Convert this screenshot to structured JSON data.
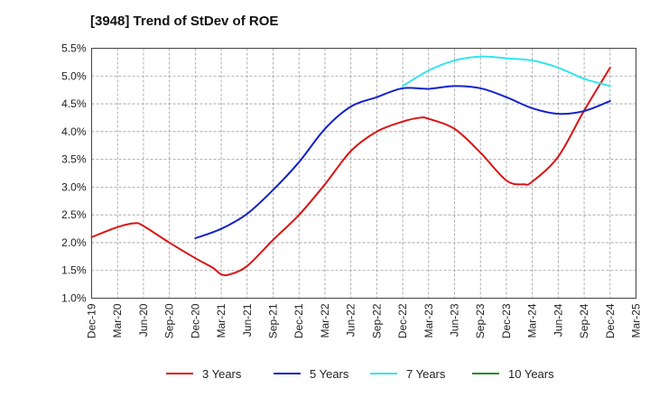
{
  "chart_data": {
    "type": "line",
    "title": "[3948]  Trend of StDev of ROE",
    "xlabel": "",
    "ylabel": "",
    "x_ticks": [
      "Dec-19",
      "Mar-20",
      "Jun-20",
      "Sep-20",
      "Dec-20",
      "Mar-21",
      "Jun-21",
      "Sep-21",
      "Dec-21",
      "Mar-22",
      "Jun-22",
      "Sep-22",
      "Dec-22",
      "Mar-23",
      "Jun-23",
      "Sep-23",
      "Dec-23",
      "Mar-24",
      "Jun-24",
      "Sep-24",
      "Dec-24",
      "Mar-25"
    ],
    "y_ticks": [
      "1.0%",
      "1.5%",
      "2.0%",
      "2.5%",
      "3.0%",
      "3.5%",
      "4.0%",
      "4.5%",
      "5.0%",
      "5.5%"
    ],
    "ylim": [
      1.0,
      5.5
    ],
    "grid": true,
    "grid_style": "dashed",
    "legend_position": "bottom",
    "series": [
      {
        "name": "3 Years",
        "color": "#dd1111",
        "points": [
          [
            "Dec-19",
            2.1
          ],
          [
            "Mar-20",
            2.28
          ],
          [
            "May-20",
            2.35
          ],
          [
            "Jun-20",
            2.3
          ],
          [
            "Sep-20",
            2.0
          ],
          [
            "Dec-20",
            1.72
          ],
          [
            "Feb-21",
            1.55
          ],
          [
            "Mar-21",
            1.43
          ],
          [
            "Apr-21",
            1.43
          ],
          [
            "Jun-21",
            1.58
          ],
          [
            "Sep-21",
            2.05
          ],
          [
            "Dec-21",
            2.5
          ],
          [
            "Mar-22",
            3.05
          ],
          [
            "Jun-22",
            3.65
          ],
          [
            "Sep-22",
            4.0
          ],
          [
            "Dec-22",
            4.18
          ],
          [
            "Feb-23",
            4.25
          ],
          [
            "Mar-23",
            4.23
          ],
          [
            "Jun-23",
            4.05
          ],
          [
            "Sep-23",
            3.62
          ],
          [
            "Dec-23",
            3.12
          ],
          [
            "Feb-24",
            3.05
          ],
          [
            "Mar-24",
            3.1
          ],
          [
            "Jun-24",
            3.55
          ],
          [
            "Sep-24",
            4.38
          ],
          [
            "Dec-24",
            5.15
          ]
        ]
      },
      {
        "name": "5 Years",
        "color": "#1122cc",
        "points": [
          [
            "Dec-20",
            2.08
          ],
          [
            "Mar-21",
            2.25
          ],
          [
            "Jun-21",
            2.52
          ],
          [
            "Sep-21",
            2.95
          ],
          [
            "Dec-21",
            3.45
          ],
          [
            "Mar-22",
            4.05
          ],
          [
            "Jun-22",
            4.45
          ],
          [
            "Sep-22",
            4.62
          ],
          [
            "Dec-22",
            4.78
          ],
          [
            "Mar-23",
            4.77
          ],
          [
            "Jun-23",
            4.82
          ],
          [
            "Sep-23",
            4.78
          ],
          [
            "Dec-23",
            4.62
          ],
          [
            "Mar-24",
            4.42
          ],
          [
            "Jun-24",
            4.32
          ],
          [
            "Sep-24",
            4.37
          ],
          [
            "Dec-24",
            4.55
          ]
        ]
      },
      {
        "name": "7 Years",
        "color": "#33e5ee",
        "points": [
          [
            "Dec-22",
            4.82
          ],
          [
            "Mar-23",
            5.1
          ],
          [
            "Jun-23",
            5.28
          ],
          [
            "Sep-23",
            5.35
          ],
          [
            "Dec-23",
            5.32
          ],
          [
            "Mar-24",
            5.28
          ],
          [
            "Jun-24",
            5.15
          ],
          [
            "Sep-24",
            4.95
          ],
          [
            "Dec-24",
            4.82
          ]
        ]
      },
      {
        "name": "10 Years",
        "color": "#228822",
        "points": []
      }
    ]
  }
}
